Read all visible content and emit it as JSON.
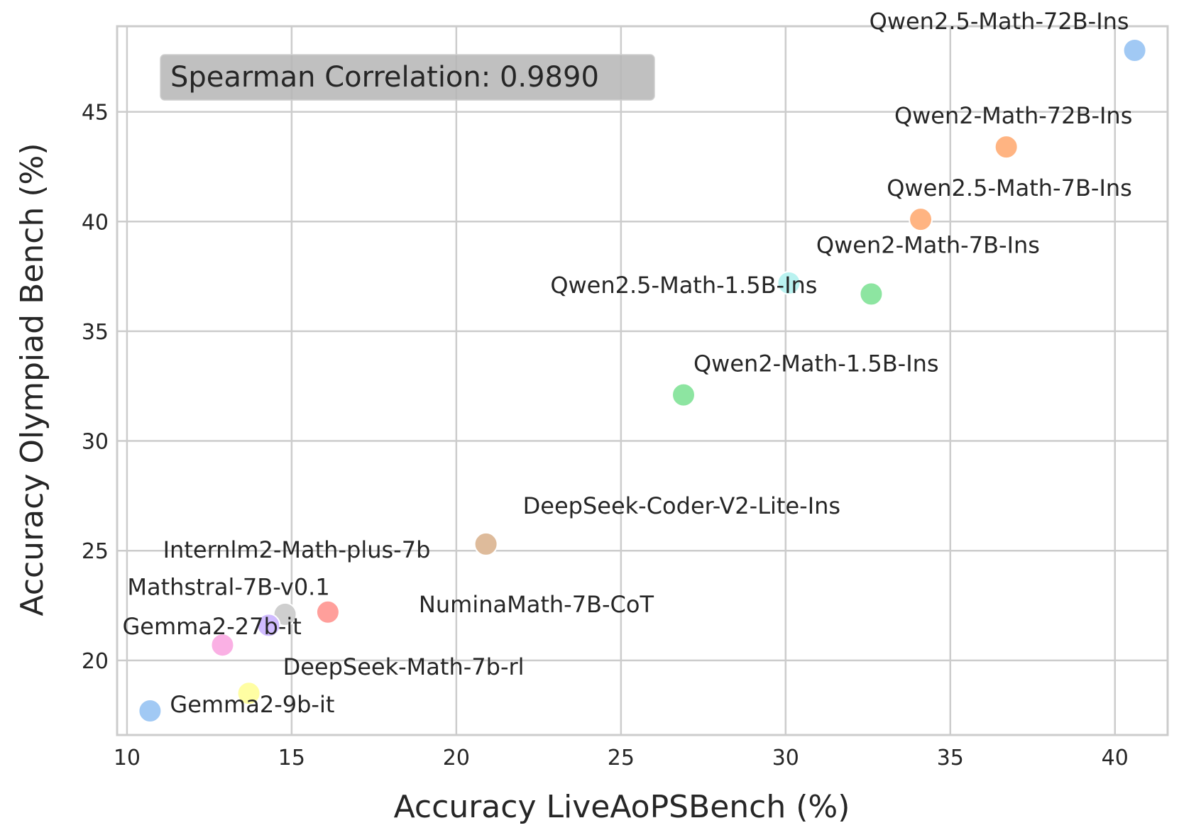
{
  "chart_data": {
    "type": "scatter",
    "title": "",
    "xlabel": "Accuracy LiveAoPSBench (%)",
    "ylabel": "Accuracy Olympiad Bench (%)",
    "xlim": [
      9.7,
      41.6
    ],
    "ylim": [
      16.6,
      48.9
    ],
    "xticks": [
      10,
      15,
      20,
      25,
      30,
      35,
      40
    ],
    "yticks": [
      20,
      25,
      30,
      35,
      40,
      45
    ],
    "grid": true,
    "annotation": "Spearman Correlation: 0.9890",
    "points": [
      {
        "label": "Qwen2.5-Math-72B-Ins",
        "x": 40.6,
        "y": 47.8,
        "color": "#a1c9f4",
        "label_dx": -8,
        "label_dy": -30,
        "anchor": "end"
      },
      {
        "label": "Qwen2-Math-72B-Ins",
        "x": 36.7,
        "y": 43.4,
        "color": "#ffb482",
        "label_dx": 10,
        "label_dy": -33,
        "anchor": "middle"
      },
      {
        "label": "Qwen2.5-Math-7B-Ins",
        "x": 34.1,
        "y": 40.1,
        "color": "#ffb482",
        "label_dx": 125,
        "label_dy": -33,
        "anchor": "middle"
      },
      {
        "label": "Qwen2-Math-7B-Ins",
        "x": 32.6,
        "y": 36.7,
        "color": "#8de5a1",
        "label_dx": 80,
        "label_dy": -58,
        "anchor": "middle"
      },
      {
        "label": "Qwen2.5-Math-1.5B-Ins",
        "x": 30.1,
        "y": 37.2,
        "color": "#b9f2f0",
        "label_dx": 40,
        "label_dy": 14,
        "anchor": "end"
      },
      {
        "label": "Qwen2-Math-1.5B-Ins",
        "x": 26.9,
        "y": 32.1,
        "color": "#8de5a1",
        "label_dx": 14,
        "label_dy": -33,
        "anchor": "start"
      },
      {
        "label": "DeepSeek-Coder-V2-Lite-Ins",
        "x": 20.9,
        "y": 25.3,
        "color": "#debb9b",
        "label_dx": 52,
        "label_dy": -43,
        "anchor": "start"
      },
      {
        "label": "Internlm2-Math-plus-7b",
        "x": 14.8,
        "y": 22.1,
        "color": "#cfcfcf",
        "label_dx": -172,
        "label_dy": -80,
        "anchor": "start"
      },
      {
        "label": "NuminaMath-7B-CoT",
        "x": 16.1,
        "y": 22.2,
        "color": "#ff9f9b",
        "label_dx": 128,
        "label_dy": 0,
        "anchor": "start"
      },
      {
        "label": "Mathstral-7B-v0.1",
        "x": 14.3,
        "y": 21.6,
        "color": "#d0bbff",
        "label_dx": -199,
        "label_dy": -43,
        "anchor": "start"
      },
      {
        "label": "Gemma2-27b-it",
        "x": 12.9,
        "y": 20.7,
        "color": "#fab0e4",
        "label_dx": -141,
        "label_dy": -15,
        "anchor": "start"
      },
      {
        "label": "DeepSeek-Math-7b-rl",
        "x": 13.7,
        "y": 18.5,
        "color": "#fffea3",
        "label_dx": 48,
        "label_dy": -26,
        "anchor": "start"
      },
      {
        "label": "Gemma2-9b-it",
        "x": 10.7,
        "y": 17.7,
        "color": "#a1c9f4",
        "label_dx": 28,
        "label_dy": 2,
        "anchor": "start"
      }
    ]
  }
}
